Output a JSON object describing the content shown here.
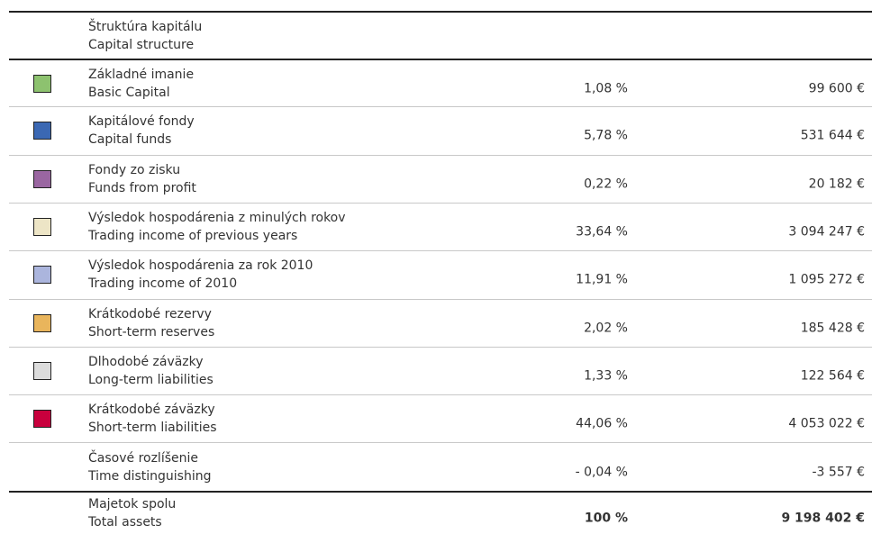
{
  "header": {
    "title_sk": "Štruktúra kapitálu",
    "title_en": "Capital structure"
  },
  "rows": [
    {
      "color": "#8dc26f",
      "label_sk": "Základné imanie",
      "label_en": "Basic Capital",
      "percent": "1,08 %",
      "amount": "99 600 €"
    },
    {
      "color": "#3b68b3",
      "label_sk": "Kapitálové fondy",
      "label_en": "Capital funds",
      "percent": "5,78 %",
      "amount": "531 644 €"
    },
    {
      "color": "#9a66a1",
      "label_sk": "Fondy zo zisku",
      "label_en": "Funds from profit",
      "percent": "0,22 %",
      "amount": "20 182 €"
    },
    {
      "color": "#ede5c6",
      "label_sk": "Výsledok hospodárenia z minulých rokov",
      "label_en": "Trading income of previous years",
      "percent": "33,64 %",
      "amount": "3 094 247 €"
    },
    {
      "color": "#abb5dd",
      "label_sk": "Výsledok hospodárenia za rok 2010",
      "label_en": "Trading income of 2010",
      "percent": "11,91 %",
      "amount": "1 095 272 €"
    },
    {
      "color": "#e9b55c",
      "label_sk": "Krátkodobé rezervy",
      "label_en": "Short-term reserves",
      "percent": "2,02 %",
      "amount": "185 428 €"
    },
    {
      "color": "#dcdcdc",
      "label_sk": "Dlhodobé záväzky",
      "label_en": "Long-term liabilities",
      "percent": "1,33 %",
      "amount": "122 564 €"
    },
    {
      "color": "#c8003d",
      "label_sk": "Krátkodobé záväzky",
      "label_en": "Short-term liabilities",
      "percent": "44,06 %",
      "amount": "4 053 022 €"
    },
    {
      "color": null,
      "label_sk": "Časové rozlíšenie",
      "label_en": "Time distinguishing",
      "percent": "- 0,04 %",
      "amount": "-3 557 €"
    }
  ],
  "total": {
    "label_sk": "Majetok spolu",
    "label_en": "Total assets",
    "percent": "100 %",
    "amount": "9 198 402 €"
  }
}
